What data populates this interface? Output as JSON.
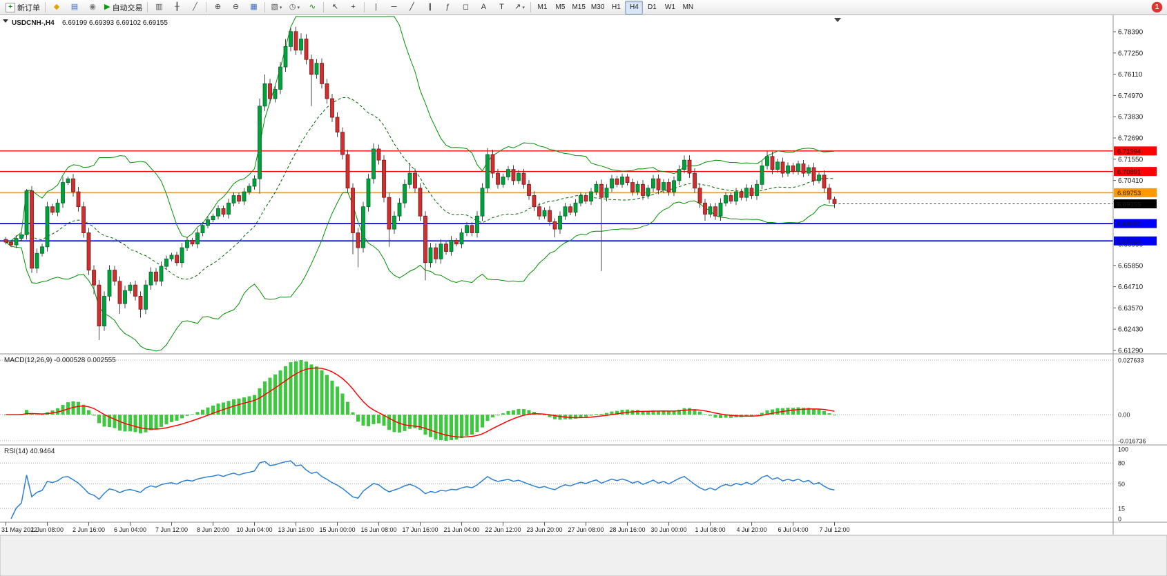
{
  "app": {
    "badge_count": "1"
  },
  "toolbar": {
    "groups": [
      {
        "items": [
          {
            "name": "new-order-button",
            "icon": "new-order-icon",
            "glyph": "+",
            "boxed": true,
            "color": "#0a8a0a",
            "text": "新订单"
          }
        ]
      },
      {
        "items": [
          {
            "name": "metaeditor-button",
            "icon": "metaeditor-icon",
            "glyph": "◆",
            "color": "#e0a400"
          },
          {
            "name": "market-watch-button",
            "icon": "market-watch-icon",
            "glyph": "▤",
            "color": "#3a6fc4"
          },
          {
            "name": "strategy-tester-button",
            "icon": "strategy-tester-icon",
            "glyph": "◉",
            "color": "#777777"
          },
          {
            "name": "autotrading-button",
            "icon": "autotrading-icon",
            "glyph": "▶",
            "color": "#00a000",
            "text": "自动交易"
          }
        ]
      },
      {
        "items": [
          {
            "name": "bar-chart-button",
            "icon": "bar-chart-icon",
            "glyph": "▥",
            "color": "#555555"
          },
          {
            "name": "candlestick-chart-button",
            "icon": "candlestick-chart-icon",
            "glyph": "╂",
            "color": "#555555"
          },
          {
            "name": "line-chart-button",
            "icon": "line-chart-icon",
            "glyph": "╱",
            "color": "#555555"
          }
        ]
      },
      {
        "items": [
          {
            "name": "zoom-in-button",
            "icon": "zoom-in-icon",
            "glyph": "⊕",
            "color": "#444444"
          },
          {
            "name": "zoom-out-button",
            "icon": "zoom-out-icon",
            "glyph": "⊖",
            "color": "#444444"
          },
          {
            "name": "tile-windows-button",
            "icon": "tile-windows-icon",
            "glyph": "▦",
            "color": "#3a6fc4"
          }
        ]
      },
      {
        "items": [
          {
            "name": "new-chart-button",
            "icon": "new-chart-icon",
            "glyph": "▧",
            "color": "#555555",
            "dropdown": true
          },
          {
            "name": "profiles-button",
            "icon": "profiles-clock-icon",
            "glyph": "◷",
            "color": "#555555",
            "dropdown": true
          },
          {
            "name": "indicators-button",
            "icon": "indicators-icon",
            "glyph": "∿",
            "color": "#0a8a0a"
          }
        ]
      },
      {
        "items": [
          {
            "name": "cursor-button",
            "icon": "cursor-arrow-icon",
            "glyph": "↖",
            "color": "#333333"
          },
          {
            "name": "crosshair-button",
            "icon": "crosshair-icon",
            "glyph": "+",
            "color": "#333333"
          }
        ]
      },
      {
        "items": [
          {
            "name": "vertical-line-button",
            "icon": "vertical-line-icon",
            "glyph": "|",
            "color": "#333333"
          },
          {
            "name": "horizontal-line-button",
            "icon": "horizontal-line-icon",
            "glyph": "─",
            "color": "#333333"
          },
          {
            "name": "trendline-button",
            "icon": "trendline-icon",
            "glyph": "╱",
            "color": "#333333"
          },
          {
            "name": "channel-button",
            "icon": "channel-icon",
            "glyph": "∥",
            "color": "#333333"
          },
          {
            "name": "fibonacci-button",
            "icon": "fibonacci-icon",
            "glyph": "ƒ",
            "color": "#333333"
          },
          {
            "name": "shapes-button",
            "icon": "shapes-icon",
            "glyph": "◻",
            "color": "#333333"
          },
          {
            "name": "text-button",
            "icon": "text-icon",
            "glyph": "A",
            "color": "#333333"
          },
          {
            "name": "label-button",
            "icon": "label-icon",
            "glyph": "T",
            "color": "#333333"
          },
          {
            "name": "arrows-button",
            "icon": "arrows-icon",
            "glyph": "↗",
            "color": "#333333",
            "dropdown": true
          }
        ]
      },
      {
        "items": [
          {
            "name": "timeframe-m1-button",
            "label": "M1"
          },
          {
            "name": "timeframe-m5-button",
            "label": "M5"
          },
          {
            "name": "timeframe-m15-button",
            "label": "M15"
          },
          {
            "name": "timeframe-m30-button",
            "label": "M30"
          },
          {
            "name": "timeframe-h1-button",
            "label": "H1"
          },
          {
            "name": "timeframe-h4-button",
            "label": "H4",
            "active": true
          },
          {
            "name": "timeframe-d1-button",
            "label": "D1"
          },
          {
            "name": "timeframe-w1-button",
            "label": "W1"
          },
          {
            "name": "timeframe-mn-button",
            "label": "MN"
          }
        ]
      }
    ]
  },
  "chart_data": [
    {
      "type": "candlestick",
      "title": {
        "symbol": "USDCNH-,H4",
        "open": "6.69199",
        "high": "6.69393",
        "low": "6.69102",
        "close": "6.69155"
      },
      "y_ticks": [
        "6.78390",
        "6.77250",
        "6.76110",
        "6.74970",
        "6.73830",
        "6.72690",
        "6.71550",
        "6.70410",
        "6.69270",
        "6.68130",
        "6.66990",
        "6.65850",
        "6.64710",
        "6.63570",
        "6.62430",
        "6.61290"
      ],
      "y_range": [
        6.6129,
        6.7839
      ],
      "x_labels": [
        "31 May 2022",
        "1 Jun 08:00",
        "2 Jun 16:00",
        "6 Jun 04:00",
        "7 Jun 12:00",
        "8 Jun 20:00",
        "10 Jun 04:00",
        "13 Jun 16:00",
        "15 Jun 00:00",
        "16 Jun 08:00",
        "17 Jun 16:00",
        "21 Jun 04:00",
        "22 Jun 12:00",
        "23 Jun 20:00",
        "27 Jun 08:00",
        "28 Jun 16:00",
        "30 Jun 00:00",
        "1 Jul 08:00",
        "4 Jul 20:00",
        "6 Jul 04:00",
        "7 Jul 12:00"
      ],
      "label_step": 8,
      "first_open": 6.6725,
      "closes": [
        6.671,
        6.6695,
        6.673,
        6.675,
        6.6985,
        6.657,
        6.665,
        6.6685,
        6.69,
        6.687,
        6.692,
        6.703,
        6.705,
        6.698,
        6.69,
        6.676,
        6.656,
        6.648,
        6.626,
        6.642,
        6.656,
        6.65,
        6.638,
        6.645,
        6.648,
        6.642,
        6.635,
        6.648,
        6.655,
        6.65,
        6.658,
        6.662,
        6.664,
        6.66,
        6.668,
        6.672,
        6.67,
        6.676,
        6.68,
        6.683,
        6.685,
        6.689,
        6.686,
        6.692,
        6.696,
        6.693,
        6.698,
        6.701,
        6.705,
        6.744,
        6.756,
        6.748,
        6.753,
        6.765,
        6.776,
        6.784,
        6.774,
        6.78,
        6.769,
        6.761,
        6.767,
        6.756,
        6.748,
        6.738,
        6.73,
        6.718,
        6.7,
        6.676,
        6.668,
        6.69,
        6.705,
        6.721,
        6.715,
        6.695,
        6.678,
        6.685,
        6.692,
        6.702,
        6.708,
        6.7,
        6.685,
        6.66,
        6.668,
        6.662,
        6.67,
        6.666,
        6.672,
        6.67,
        6.676,
        6.68,
        6.676,
        6.685,
        6.7,
        6.718,
        6.708,
        6.702,
        6.706,
        6.71,
        6.704,
        6.708,
        6.702,
        6.696,
        6.69,
        6.685,
        6.688,
        6.682,
        6.678,
        6.685,
        6.69,
        6.687,
        6.692,
        6.696,
        6.693,
        6.698,
        6.702,
        6.695,
        6.7,
        6.705,
        6.702,
        6.706,
        6.703,
        6.698,
        6.702,
        6.696,
        6.7,
        6.705,
        6.699,
        6.703,
        6.698,
        6.704,
        6.71,
        6.715,
        6.708,
        6.7,
        6.692,
        6.686,
        6.69,
        6.685,
        6.692,
        6.696,
        6.693,
        6.698,
        6.695,
        6.7,
        6.696,
        6.702,
        6.712,
        6.717,
        6.71,
        6.714,
        6.708,
        6.712,
        6.709,
        6.713,
        6.708,
        6.711,
        6.704,
        6.707,
        6.7,
        6.694,
        6.6916
      ],
      "wick_base": 0.0008,
      "wick_body_factor": 0.25,
      "wick_cap": 0.0018,
      "wick_overrides": {
        "4": {
          "high": 6.6995
        },
        "5": {
          "low": 6.6545
        },
        "11": {
          "high": 6.706
        },
        "12": {
          "high": 6.7062
        },
        "17": {
          "low": 6.643
        },
        "18": {
          "low": 6.6185
        },
        "22": {
          "low": 6.6325
        },
        "26": {
          "low": 6.6305
        },
        "49": {
          "high": 6.748,
          "low": 6.697
        },
        "50": {
          "high": 6.761
        },
        "54": {
          "high": 6.78
        },
        "55": {
          "high": 6.7858
        },
        "57": {
          "high": 6.783
        },
        "59": {
          "low": 6.744
        },
        "67": {
          "low": 6.6645
        },
        "68": {
          "low": 6.6575
        },
        "71": {
          "high": 6.724
        },
        "74": {
          "low": 6.6685
        },
        "78": {
          "high": 6.7135
        },
        "81": {
          "low": 6.6505
        },
        "93": {
          "high": 6.7215
        },
        "106": {
          "low": 6.6735
        },
        "115": {
          "low": 6.6555
        },
        "131": {
          "high": 6.7175
        },
        "135": {
          "low": 6.6825
        },
        "147": {
          "high": 6.7198
        },
        "160": {
          "low": 6.6893
        }
      },
      "bollinger": {
        "period": 20,
        "deviation": 2,
        "color": "#008f00"
      },
      "h_lines": [
        {
          "price": 6.71994,
          "label": "6.71994",
          "color": "#ff0000"
        },
        {
          "price": 6.70891,
          "label": "6.70891",
          "color": "#ff0000"
        },
        {
          "price": 6.69753,
          "label": "6.69753",
          "color": "#ff9900"
        },
        {
          "price": 6.68097,
          "label": "6.68097",
          "color": "#0000ff"
        },
        {
          "price": 6.67166,
          "label": "6.67166",
          "color": "#0000ff"
        }
      ],
      "current_price": {
        "value": 6.69155,
        "label": "6.69155",
        "color": "#000000"
      },
      "colors": {
        "up": "#00a13a",
        "up_border": "#00662a",
        "down": "#cc3030",
        "down_border": "#7d1414",
        "wick": "#444444"
      }
    },
    {
      "type": "macd",
      "label": "MACD(12,26,9) -0.000528 0.002555",
      "fast": 12,
      "slow": 26,
      "signal": 9,
      "axis_ticks": [
        "0.027633",
        "0.00",
        "-0.016736"
      ],
      "axis_values": [
        0.027633,
        0,
        -0.016736
      ],
      "colors": {
        "histogram": "#3dc93d",
        "signal": "#ff0000"
      }
    },
    {
      "type": "rsi",
      "label": "RSI(14) 40.9464",
      "period": 14,
      "levels": [
        80,
        50,
        15
      ],
      "axis_ticks": [
        "100",
        "80",
        "50",
        "15",
        "0"
      ],
      "axis_values": [
        100,
        80,
        50,
        15,
        0
      ],
      "color": "#2d7fd3"
    }
  ]
}
